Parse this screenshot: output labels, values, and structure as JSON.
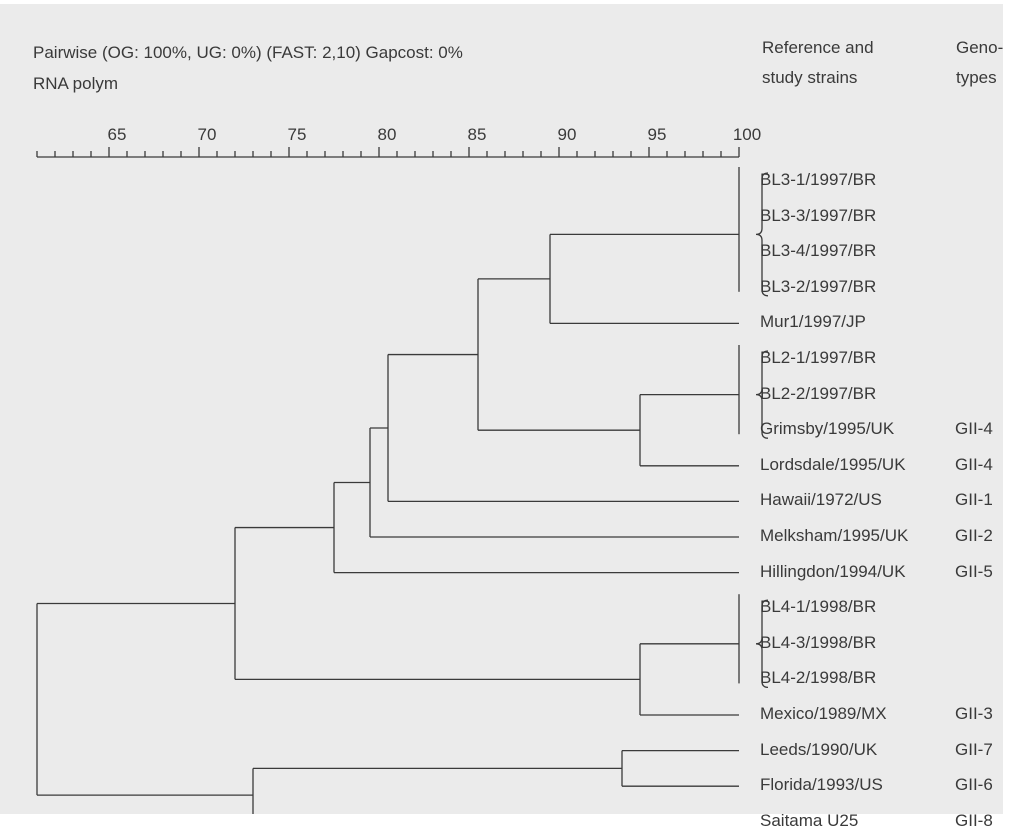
{
  "header": {
    "line1": "Pairwise (OG: 100%, UG: 0%) (FAST: 2,10) Gapcost: 0%",
    "line2": "RNA polym",
    "ref_line1": "Reference and",
    "ref_line2": "study strains",
    "geno_line1": "Geno-",
    "geno_line2": "types"
  },
  "scale": {
    "min": 61,
    "max": 100,
    "minor_step": 1,
    "labels": [
      "65",
      "70",
      "75",
      "80",
      "85",
      "90",
      "95",
      "100"
    ]
  },
  "strains": [
    {
      "label": "BL3-1/1997/BR",
      "genotype": ""
    },
    {
      "label": "BL3-3/1997/BR",
      "genotype": ""
    },
    {
      "label": "BL3-4/1997/BR",
      "genotype": ""
    },
    {
      "label": "BL3-2/1997/BR",
      "genotype": ""
    },
    {
      "label": "Mur1/1997/JP",
      "genotype": ""
    },
    {
      "label": "BL2-1/1997/BR",
      "genotype": ""
    },
    {
      "label": "BL2-2/1997/BR",
      "genotype": ""
    },
    {
      "label": "Grimsby/1995/UK",
      "genotype": "GII-4"
    },
    {
      "label": "Lordsdale/1995/UK",
      "genotype": "GII-4"
    },
    {
      "label": "Hawaii/1972/US",
      "genotype": "GII-1"
    },
    {
      "label": "Melksham/1995/UK",
      "genotype": "GII-2"
    },
    {
      "label": "Hillingdon/1994/UK",
      "genotype": "GII-5"
    },
    {
      "label": "BL4-1/1998/BR",
      "genotype": ""
    },
    {
      "label": "BL4-3/1998/BR",
      "genotype": ""
    },
    {
      "label": "BL4-2/1998/BR",
      "genotype": ""
    },
    {
      "label": "Mexico/1989/MX",
      "genotype": "GII-3"
    },
    {
      "label": "Leeds/1990/UK",
      "genotype": "GII-7"
    },
    {
      "label": "Florida/1993/US",
      "genotype": "GII-6"
    },
    {
      "label": "Saitama U25",
      "genotype": "GII-8"
    }
  ],
  "tree": {
    "clusters": [
      {
        "id": "c1",
        "leaves": [
          0,
          1,
          2,
          3
        ],
        "similarity": 100,
        "bracket": true
      },
      {
        "id": "c2",
        "leaves": [
          5,
          6,
          7
        ],
        "similarity": 100,
        "bracket": true
      },
      {
        "id": "c3",
        "leaves": [
          12,
          13,
          14
        ],
        "similarity": 100,
        "bracket": true
      }
    ],
    "nodes": [
      {
        "id": "n1",
        "children": [
          "c1",
          4
        ],
        "similarity": 89.5
      },
      {
        "id": "n2",
        "children": [
          "c2",
          8
        ],
        "similarity": 94.5
      },
      {
        "id": "n3",
        "children": [
          "n1",
          "n2"
        ],
        "similarity": 85.5
      },
      {
        "id": "n4",
        "children": [
          "n3",
          9
        ],
        "similarity": 80.5
      },
      {
        "id": "n5",
        "children": [
          "n4",
          10
        ],
        "similarity": 79.5
      },
      {
        "id": "n6",
        "children": [
          "n5",
          11
        ],
        "similarity": 77.5
      },
      {
        "id": "n7",
        "children": [
          "c3",
          15
        ],
        "similarity": 94.5
      },
      {
        "id": "n8",
        "children": [
          "n6",
          "n7"
        ],
        "similarity": 72
      },
      {
        "id": "n9",
        "children": [
          16,
          17
        ],
        "similarity": 93.5
      },
      {
        "id": "n10",
        "children": [
          "n9",
          18
        ],
        "similarity": 73
      },
      {
        "id": "n11",
        "children": [
          "n8",
          "n10"
        ],
        "similarity": 61
      }
    ]
  }
}
